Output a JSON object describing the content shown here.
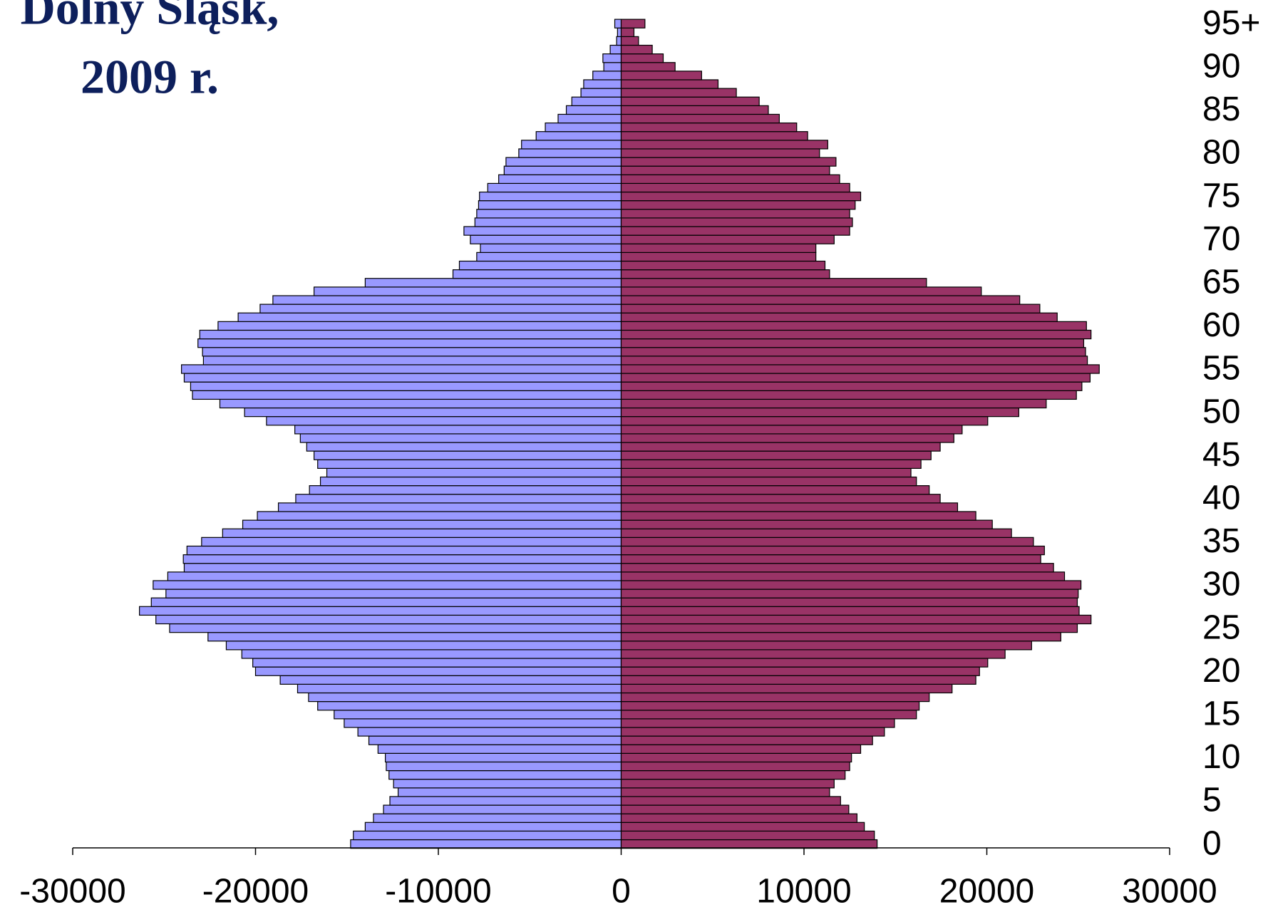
{
  "chart_data": {
    "type": "bar",
    "orientation": "horizontal",
    "title": "Dolny Śląsk,",
    "subtitle": "2009 r.",
    "categories": [
      "0",
      null,
      null,
      null,
      null,
      "5",
      null,
      null,
      null,
      null,
      "10",
      null,
      null,
      null,
      null,
      "15",
      null,
      null,
      null,
      null,
      "20",
      null,
      null,
      null,
      null,
      "25",
      null,
      null,
      null,
      null,
      "30",
      null,
      null,
      null,
      null,
      "35",
      null,
      null,
      null,
      null,
      "40",
      null,
      null,
      null,
      null,
      "45",
      null,
      null,
      null,
      null,
      "50",
      null,
      null,
      null,
      null,
      "55",
      null,
      null,
      null,
      null,
      "60",
      null,
      null,
      null,
      null,
      "65",
      null,
      null,
      null,
      null,
      "70",
      null,
      null,
      null,
      null,
      "75",
      null,
      null,
      null,
      null,
      "80",
      null,
      null,
      null,
      null,
      "85",
      null,
      null,
      null,
      null,
      "90",
      null,
      null,
      null,
      null,
      "95+"
    ],
    "series": [
      {
        "color": "#9999ff",
        "values": [
          -14800,
          -14650,
          -14000,
          -13550,
          -13000,
          -12650,
          -12200,
          -12450,
          -12700,
          -12850,
          -12900,
          -13300,
          -13800,
          -14400,
          -15150,
          -15700,
          -16600,
          -17100,
          -17700,
          -18650,
          -20000,
          -20150,
          -20750,
          -21600,
          -22600,
          -24700,
          -25450,
          -26350,
          -25700,
          -24900,
          -25600,
          -24800,
          -23900,
          -23950,
          -23750,
          -22950,
          -21800,
          -20700,
          -19900,
          -18750,
          -17800,
          -17050,
          -16450,
          -16100,
          -16600,
          -16800,
          -17200,
          -17550,
          -17850,
          -19400,
          -20600,
          -21950,
          -23450,
          -23550,
          -23900,
          -24050,
          -22850,
          -22900,
          -23150,
          -23050,
          -22050,
          -20950,
          -19750,
          -19050,
          -16800,
          -14000,
          -9200,
          -8850,
          -7900,
          -7700,
          -8250,
          -8600,
          -8000,
          -7900,
          -7800,
          -7750,
          -7300,
          -6700,
          -6400,
          -6300,
          -5600,
          -5450,
          -4650,
          -4150,
          -3450,
          -3000,
          -2700,
          -2200,
          -2050,
          -1550,
          -950,
          -1000,
          -600,
          -250,
          -200,
          -350
        ]
      },
      {
        "color": "#993366",
        "values": [
          14000,
          13850,
          13300,
          12900,
          12450,
          12000,
          11400,
          11650,
          12250,
          12500,
          12600,
          13100,
          13750,
          14400,
          14950,
          16150,
          16300,
          16850,
          18100,
          19400,
          19600,
          20050,
          21000,
          22450,
          24050,
          24950,
          25700,
          25050,
          24950,
          25000,
          25150,
          24250,
          23650,
          22950,
          23150,
          22550,
          21350,
          20300,
          19400,
          18400,
          17450,
          16850,
          16150,
          15850,
          16400,
          16950,
          17450,
          18200,
          18650,
          20050,
          21750,
          23250,
          24900,
          25200,
          25650,
          26150,
          25500,
          25400,
          25300,
          25700,
          25450,
          23850,
          22900,
          21800,
          19700,
          16700,
          11400,
          11150,
          10650,
          10650,
          11650,
          12500,
          12650,
          12500,
          12800,
          13100,
          12500,
          11950,
          11400,
          11750,
          10850,
          11300,
          10200,
          9600,
          8650,
          8050,
          7550,
          6300,
          5300,
          4400,
          2950,
          2300,
          1700,
          950,
          700,
          1300
        ]
      }
    ],
    "xlim": [
      -30000,
      30000
    ],
    "xticks": [
      -30000,
      -20000,
      -10000,
      0,
      10000,
      20000,
      30000
    ]
  }
}
